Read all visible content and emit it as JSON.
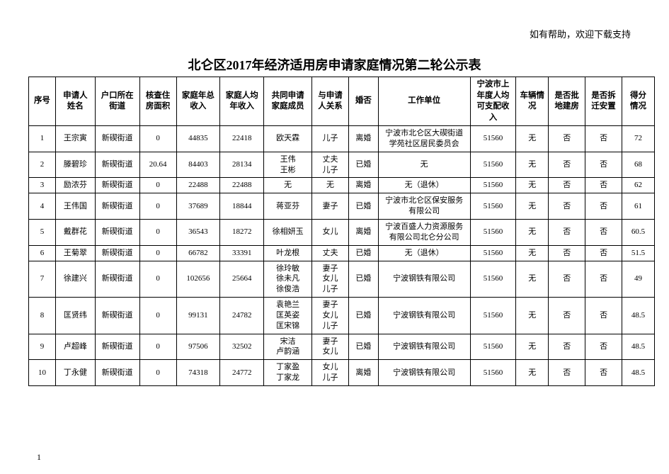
{
  "header_note": "如有帮助，欢迎下载支持",
  "title": "北仑区2017年经济适用房申请家庭情况第二轮公示表",
  "page_number": "1",
  "columns": [
    {
      "key": "seq",
      "label": "序号",
      "width": "3.8%"
    },
    {
      "key": "name",
      "label": "申请人\n姓名",
      "width": "5.6%"
    },
    {
      "key": "street",
      "label": "户口所在\n街道",
      "width": "6.3%"
    },
    {
      "key": "area",
      "label": "核查住\n房面积",
      "width": "5.2%"
    },
    {
      "key": "income_total",
      "label": "家庭年总\n收入",
      "width": "6.2%"
    },
    {
      "key": "income_per",
      "label": "家庭人均\n年收入",
      "width": "6.2%"
    },
    {
      "key": "members",
      "label": "共同申请\n家庭成员",
      "width": "6.8%"
    },
    {
      "key": "relation",
      "label": "与申请\n人关系",
      "width": "5.2%"
    },
    {
      "key": "marital",
      "label": "婚否",
      "width": "4.2%"
    },
    {
      "key": "employer",
      "label": "工作单位",
      "width": "13%"
    },
    {
      "key": "disposable",
      "label": "宁波市上\n年度人均\n可支配收\n入",
      "width": "6.5%"
    },
    {
      "key": "vehicle",
      "label": "车辆情\n况",
      "width": "4.6%"
    },
    {
      "key": "approved_land",
      "label": "是否批\n地建房",
      "width": "5.2%"
    },
    {
      "key": "relocated",
      "label": "是否拆\n迁安置",
      "width": "5.2%"
    },
    {
      "key": "score",
      "label": "得分\n情况",
      "width": "4.6%"
    }
  ],
  "rows": [
    {
      "seq": "1",
      "name": "王宗寅",
      "street": "新碶街道",
      "area": "0",
      "income_total": "44835",
      "income_per": "22418",
      "members": [
        "欧天霖"
      ],
      "relation": [
        "儿子"
      ],
      "marital": "离婚",
      "employer": "宁波市北仑区大碶街道\n学苑社区居民委员会",
      "disposable": "51560",
      "vehicle": "无",
      "approved_land": "否",
      "relocated": "否",
      "score": "72"
    },
    {
      "seq": "2",
      "name": "滕碧珍",
      "street": "新碶街道",
      "area": "20.64",
      "income_total": "84403",
      "income_per": "28134",
      "members": [
        "王伟",
        "王彬"
      ],
      "relation": [
        "丈夫",
        "儿子"
      ],
      "marital": "已婚",
      "employer": "无",
      "disposable": "51560",
      "vehicle": "无",
      "approved_land": "否",
      "relocated": "否",
      "score": "68"
    },
    {
      "seq": "3",
      "name": "励浓芬",
      "street": "新碶街道",
      "area": "0",
      "income_total": "22488",
      "income_per": "22488",
      "members": [
        "无"
      ],
      "relation": [
        "无"
      ],
      "marital": "离婚",
      "employer": "无（退休）",
      "disposable": "51560",
      "vehicle": "无",
      "approved_land": "否",
      "relocated": "否",
      "score": "62"
    },
    {
      "seq": "4",
      "name": "王伟国",
      "street": "新碶街道",
      "area": "0",
      "income_total": "37689",
      "income_per": "18844",
      "members": [
        "蒋亚芬"
      ],
      "relation": [
        "妻子"
      ],
      "marital": "已婚",
      "employer": "宁波市北仑区保安服务\n有限公司",
      "disposable": "51560",
      "vehicle": "无",
      "approved_land": "否",
      "relocated": "否",
      "score": "61"
    },
    {
      "seq": "5",
      "name": "戴群花",
      "street": "新碶街道",
      "area": "0",
      "income_total": "36543",
      "income_per": "18272",
      "members": [
        "徐相妍玉"
      ],
      "relation": [
        "女儿"
      ],
      "marital": "离婚",
      "employer": "宁波百盛人力资源服务\n有限公司北仑分公司",
      "disposable": "51560",
      "vehicle": "无",
      "approved_land": "否",
      "relocated": "否",
      "score": "60.5"
    },
    {
      "seq": "6",
      "name": "王菊翠",
      "street": "新碶街道",
      "area": "0",
      "income_total": "66782",
      "income_per": "33391",
      "members": [
        "叶龙根"
      ],
      "relation": [
        "丈夫"
      ],
      "marital": "已婚",
      "employer": "无（退休）",
      "disposable": "51560",
      "vehicle": "无",
      "approved_land": "否",
      "relocated": "否",
      "score": "51.5"
    },
    {
      "seq": "7",
      "name": "徐建兴",
      "street": "新碶街道",
      "area": "0",
      "income_total": "102656",
      "income_per": "25664",
      "members": [
        "徐玲敏",
        "徐未凡",
        "徐俊浩"
      ],
      "relation": [
        "妻子",
        "女儿",
        "儿子"
      ],
      "marital": "已婚",
      "employer": "宁波钢铁有限公司",
      "disposable": "51560",
      "vehicle": "无",
      "approved_land": "否",
      "relocated": "否",
      "score": "49"
    },
    {
      "seq": "8",
      "name": "匡贤纬",
      "street": "新碶街道",
      "area": "0",
      "income_total": "99131",
      "income_per": "24782",
      "members": [
        "袁艳兰",
        "匡英姿",
        "匡宋锦"
      ],
      "relation": [
        "妻子",
        "女儿",
        "儿子"
      ],
      "marital": "已婚",
      "employer": "宁波钢铁有限公司",
      "disposable": "51560",
      "vehicle": "无",
      "approved_land": "否",
      "relocated": "否",
      "score": "48.5"
    },
    {
      "seq": "9",
      "name": "卢超峰",
      "street": "新碶街道",
      "area": "0",
      "income_total": "97506",
      "income_per": "32502",
      "members": [
        "宋洁",
        "卢韵涵"
      ],
      "relation": [
        "妻子",
        "女儿"
      ],
      "marital": "已婚",
      "employer": "宁波钢铁有限公司",
      "disposable": "51560",
      "vehicle": "无",
      "approved_land": "否",
      "relocated": "否",
      "score": "48.5"
    },
    {
      "seq": "10",
      "name": "丁永健",
      "street": "新碶街道",
      "area": "0",
      "income_total": "74318",
      "income_per": "24772",
      "members": [
        "丁家盈",
        "丁家龙"
      ],
      "relation": [
        "女儿",
        "儿子"
      ],
      "marital": "离婚",
      "employer": "宁波钢铁有限公司",
      "disposable": "51560",
      "vehicle": "无",
      "approved_land": "否",
      "relocated": "否",
      "score": "48.5"
    }
  ]
}
